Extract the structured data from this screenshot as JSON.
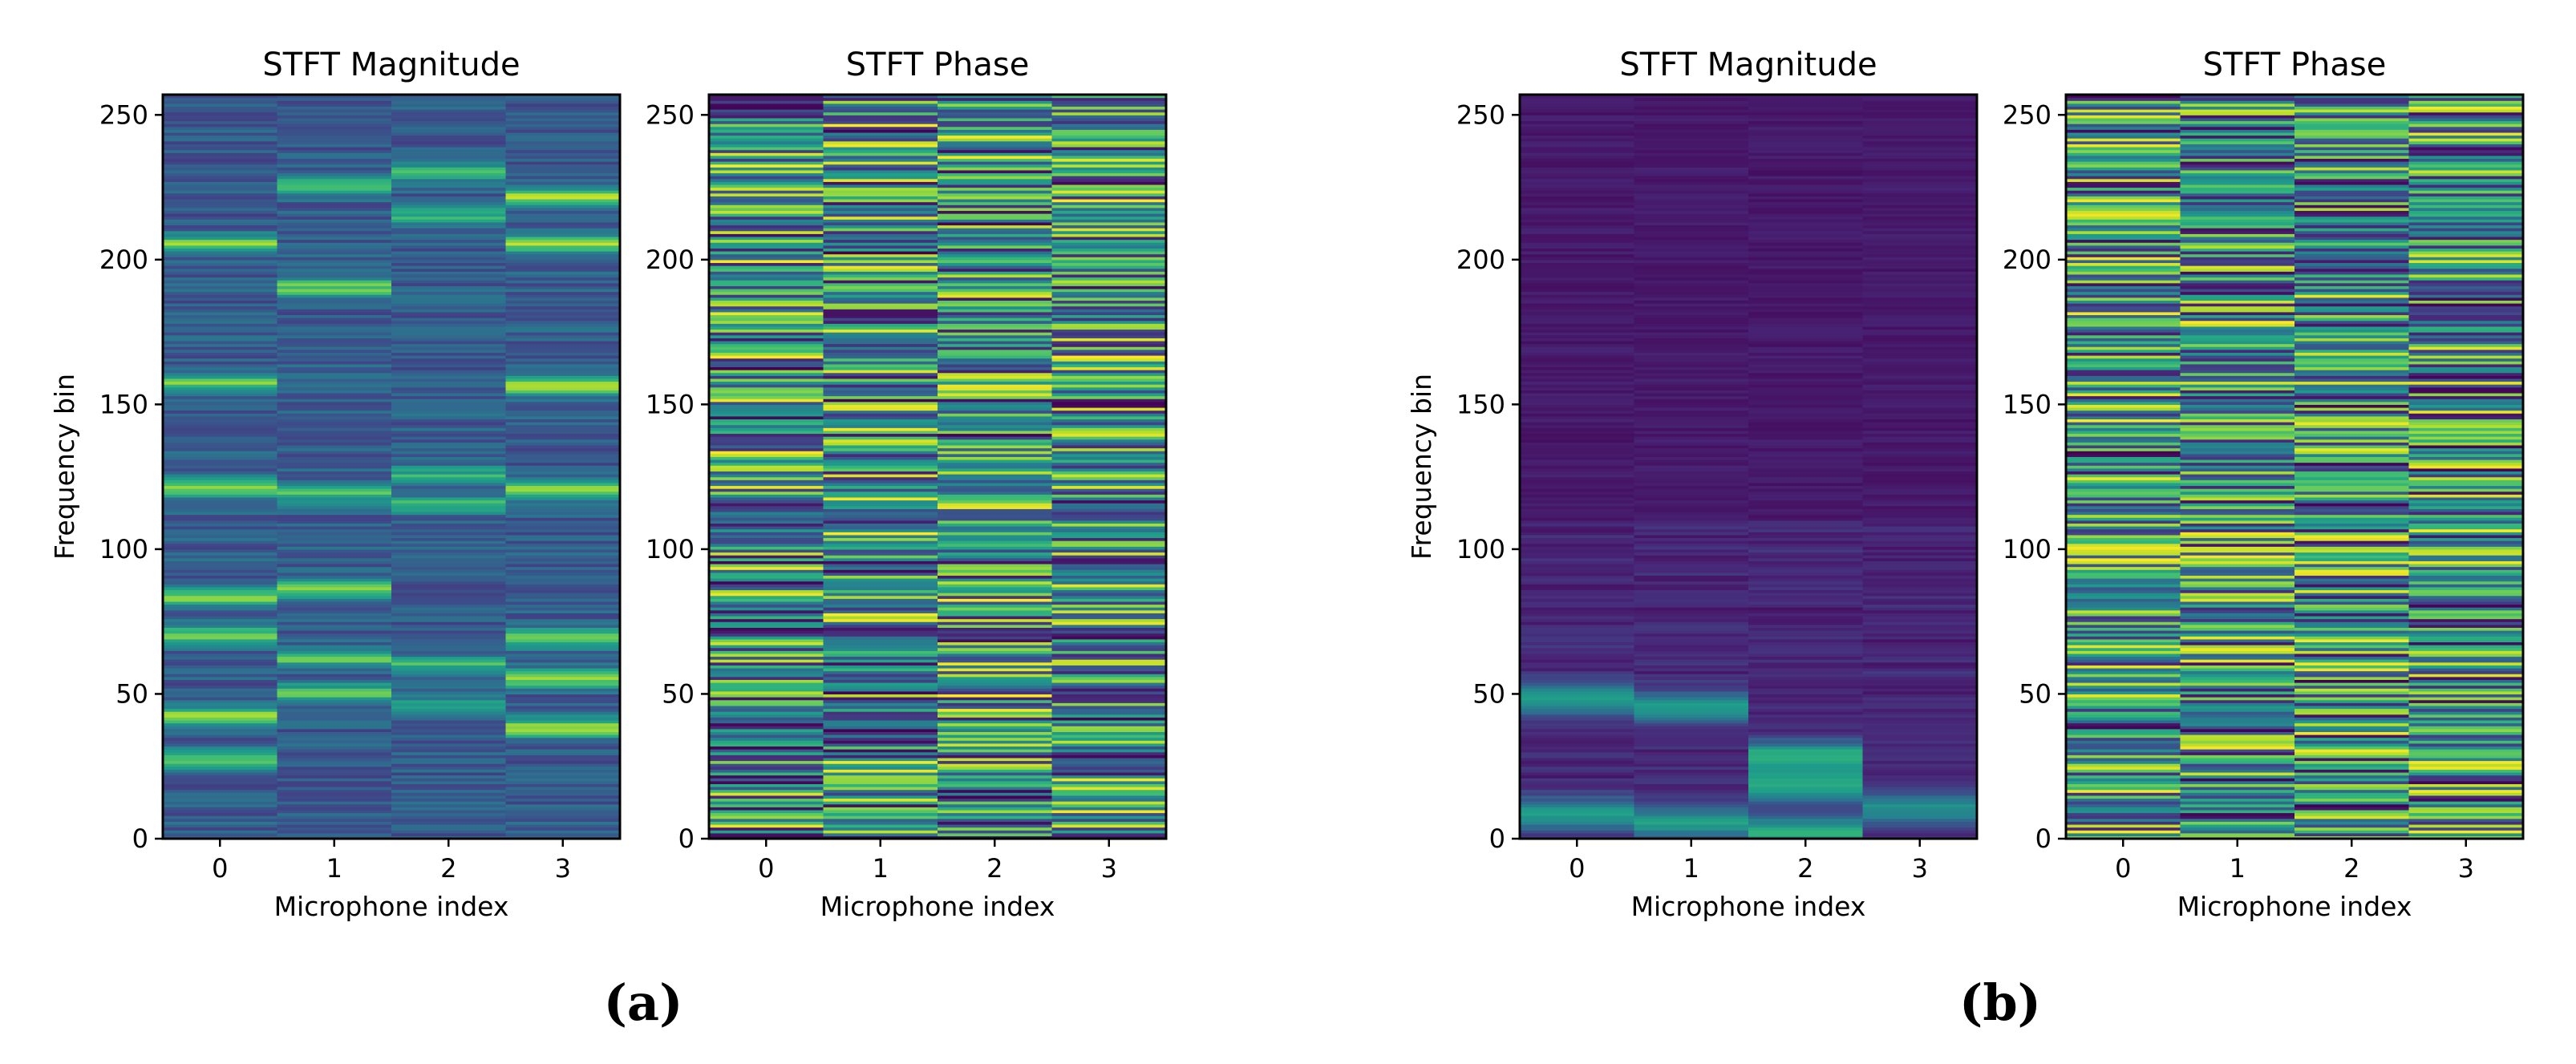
{
  "chart_data": [
    {
      "type": "heatmap",
      "panel": "a",
      "title": "STFT Magnitude",
      "xlabel": "Microphone index",
      "ylabel": "Frequency bin",
      "x_categories": [
        "0",
        "1",
        "2",
        "3"
      ],
      "ylim": [
        0,
        257
      ],
      "y_ticks": [
        0,
        50,
        100,
        150,
        200,
        250
      ],
      "colormap": "viridis",
      "n_bins": 257,
      "bands": [
        {
          "mic": 0,
          "bins": [
            205,
            157,
            121,
            83,
            70,
            42,
            27
          ],
          "level": 0.5
        },
        {
          "mic": 1,
          "bins": [
            225,
            190,
            119,
            86,
            62,
            50
          ],
          "level": 0.45
        },
        {
          "mic": 2,
          "bins": [
            230,
            215,
            125,
            115,
            60,
            45
          ],
          "level": 0.35
        },
        {
          "mic": 3,
          "bins": [
            221,
            205,
            156,
            120,
            69,
            55,
            38
          ],
          "level": 0.55
        }
      ]
    },
    {
      "type": "heatmap",
      "panel": "a",
      "title": "STFT Phase",
      "xlabel": "Microphone index",
      "ylabel": "",
      "x_categories": [
        "0",
        "1",
        "2",
        "3"
      ],
      "ylim": [
        0,
        257
      ],
      "y_ticks": [
        0,
        50,
        100,
        150,
        200,
        250
      ],
      "colormap": "viridis",
      "n_bins": 257,
      "description": "phase values wrapped to [-pi, pi], alternating horizontal stripes"
    },
    {
      "type": "heatmap",
      "panel": "b",
      "title": "STFT Magnitude",
      "xlabel": "Microphone index",
      "ylabel": "Frequency bin",
      "x_categories": [
        "0",
        "1",
        "2",
        "3"
      ],
      "ylim": [
        0,
        257
      ],
      "y_ticks": [
        0,
        50,
        100,
        150,
        200,
        250
      ],
      "colormap": "viridis",
      "n_bins": 257,
      "bands": [
        {
          "mic": 0,
          "bins": [
            48,
            8
          ],
          "level": 0.45
        },
        {
          "mic": 1,
          "bins": [
            45,
            5
          ],
          "level": 0.45
        },
        {
          "mic": 2,
          "bins": [
            28,
            18,
            2
          ],
          "level": 0.5
        },
        {
          "mic": 3,
          "bins": [
            10
          ],
          "level": 0.4
        }
      ]
    },
    {
      "type": "heatmap",
      "panel": "b",
      "title": "STFT Phase",
      "xlabel": "Microphone index",
      "ylabel": "",
      "x_categories": [
        "0",
        "1",
        "2",
        "3"
      ],
      "ylim": [
        0,
        257
      ],
      "y_ticks": [
        0,
        50,
        100,
        150,
        200,
        250
      ],
      "colormap": "viridis",
      "n_bins": 257,
      "description": "phase values wrapped to [-pi, pi], alternating horizontal stripes"
    }
  ],
  "panel_labels": [
    "(a)",
    "(b)"
  ]
}
